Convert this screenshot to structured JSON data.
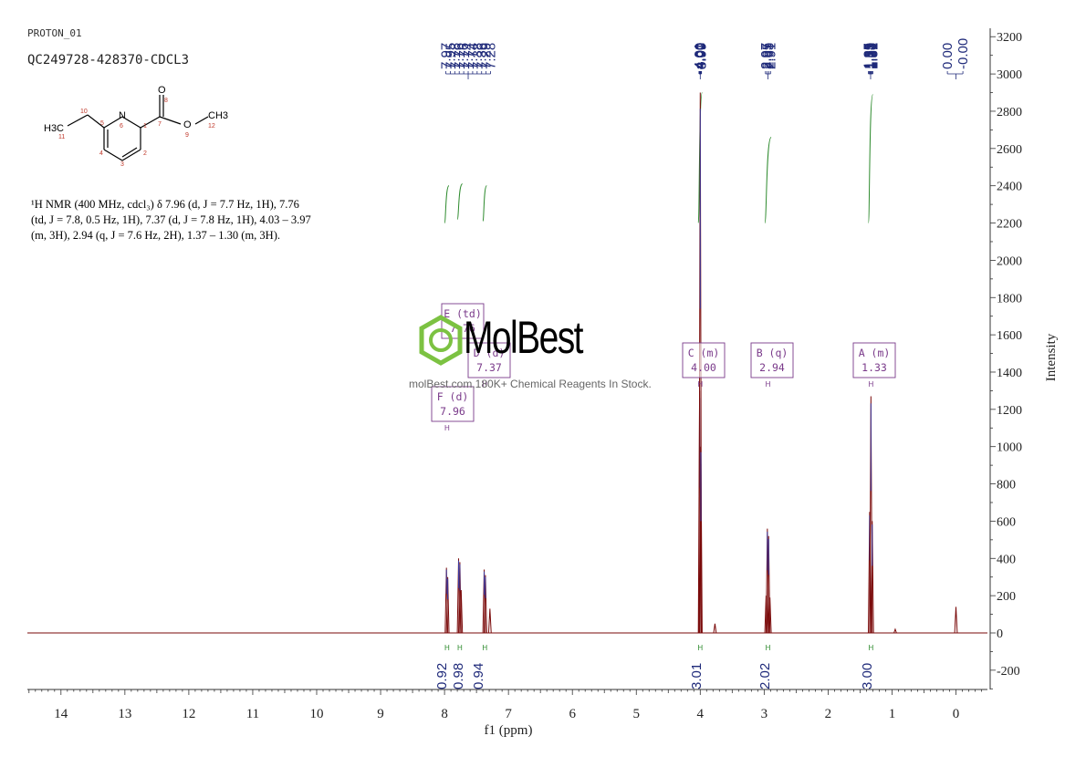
{
  "header": {
    "experiment": "PROTON_01",
    "sample": "QC249728-428370-CDCL3"
  },
  "nmr_description": {
    "line1": "¹H NMR (400 MHz, cdcl₃) δ 7.96 (d, J = 7.7 Hz, 1H), 7.76",
    "line2": "(td, J = 7.8, 0.5 Hz, 1H), 7.37 (d, J = 7.8 Hz, 1H), 4.03 – 3.97",
    "line3": "(m, 3H), 2.94 (q, J = 7.6 Hz, 2H), 1.37 – 1.30 (m, 3H)."
  },
  "structure": {
    "labels": [
      "H3C",
      "N",
      "O",
      "O",
      "CH3"
    ],
    "atom_numbers": [
      "10",
      "11",
      "5",
      "6",
      "1",
      "7",
      "8",
      "9",
      "12",
      "4",
      "3",
      "2"
    ]
  },
  "watermark": {
    "brand": "MolBest",
    "tagline": "molBest.com,180K+ Chemical Reagents In Stock."
  },
  "chart_data": {
    "type": "line",
    "xlabel": "f1 (ppm)",
    "ylabel": "Intensity",
    "xlim": [
      14.6,
      -0.5
    ],
    "ylim": [
      -300,
      3250
    ],
    "x_ticks": [
      14,
      13,
      12,
      11,
      10,
      9,
      8,
      7,
      6,
      5,
      4,
      3,
      2,
      1,
      0
    ],
    "y_ticks": [
      -200,
      0,
      200,
      400,
      600,
      800,
      1000,
      1200,
      1400,
      1600,
      1800,
      2000,
      2200,
      2400,
      2600,
      2800,
      3000,
      3200
    ],
    "peaks": [
      {
        "ppm": 7.97,
        "h": 350
      },
      {
        "ppm": 7.95,
        "h": 300
      },
      {
        "ppm": 7.78,
        "h": 400
      },
      {
        "ppm": 7.76,
        "h": 380
      },
      {
        "ppm": 7.74,
        "h": 230
      },
      {
        "ppm": 7.38,
        "h": 340
      },
      {
        "ppm": 7.36,
        "h": 310
      },
      {
        "ppm": 7.29,
        "h": 130
      },
      {
        "ppm": 4.01,
        "h": 1300
      },
      {
        "ppm": 4.0,
        "h": 2900
      },
      {
        "ppm": 3.99,
        "h": 1000
      },
      {
        "ppm": 3.77,
        "h": 50
      },
      {
        "ppm": 2.97,
        "h": 200
      },
      {
        "ppm": 2.95,
        "h": 560
      },
      {
        "ppm": 2.93,
        "h": 520
      },
      {
        "ppm": 2.91,
        "h": 190
      },
      {
        "ppm": 1.35,
        "h": 650
      },
      {
        "ppm": 1.33,
        "h": 1270
      },
      {
        "ppm": 1.31,
        "h": 600
      },
      {
        "ppm": 0.95,
        "h": 20
      },
      {
        "ppm": 0.0,
        "h": 140
      }
    ],
    "peak_labels": [
      "7.97",
      "7.95",
      "7.78",
      "7.76",
      "7.76",
      "7.74",
      "7.74",
      "7.38",
      "7.36",
      "7.29",
      "7.28",
      "4.01",
      "4.01",
      "4.00",
      "4.00",
      "4.00",
      "4.00",
      "3.99",
      "3.99",
      "2.97",
      "2.95",
      "2.93",
      "2.91",
      "1.35",
      "1.35",
      "1.33",
      "1.33",
      "1.33",
      "1.31",
      "1.31",
      "0.00",
      "-0.00"
    ],
    "label_groups": [
      [
        0,
        10,
        7.98,
        7.28
      ],
      [
        11,
        18,
        4.02,
        3.98
      ],
      [
        19,
        22,
        2.98,
        2.9
      ],
      [
        23,
        29,
        1.37,
        1.3
      ],
      [
        30,
        31,
        0.02,
        -0.02
      ]
    ],
    "multiplets": [
      {
        "name": "F (d)",
        "shift": "7.96",
        "ppm": 7.96
      },
      {
        "name": "E (td)",
        "shift": "7.76",
        "ppm": 7.76
      },
      {
        "name": "D (d)",
        "shift": "7.37",
        "ppm": 7.37
      },
      {
        "name": "C (m)",
        "shift": "4.00",
        "ppm": 4.0
      },
      {
        "name": "B (q)",
        "shift": "2.94",
        "ppm": 2.94
      },
      {
        "name": "A (m)",
        "shift": "1.33",
        "ppm": 1.33
      }
    ],
    "integrals": [
      {
        "value": "0.92",
        "ppm": 7.96
      },
      {
        "value": "0.98",
        "ppm": 7.76
      },
      {
        "value": "0.94",
        "ppm": 7.37
      },
      {
        "value": "3.01",
        "ppm": 4.0
      },
      {
        "value": "2.02",
        "ppm": 2.94
      },
      {
        "value": "3.00",
        "ppm": 1.33
      }
    ],
    "integral_curves": [
      {
        "ppm_start": 8.0,
        "ppm_end": 7.93,
        "y_start": 2200,
        "y_end": 2400
      },
      {
        "ppm_start": 7.8,
        "ppm_end": 7.72,
        "y_start": 2220,
        "y_end": 2410
      },
      {
        "ppm_start": 7.4,
        "ppm_end": 7.34,
        "y_start": 2210,
        "y_end": 2400
      },
      {
        "ppm_start": 4.03,
        "ppm_end": 3.97,
        "y_start": 2200,
        "y_end": 2900
      },
      {
        "ppm_start": 2.99,
        "ppm_end": 2.89,
        "y_start": 2200,
        "y_end": 2660
      },
      {
        "ppm_start": 1.37,
        "ppm_end": 1.3,
        "y_start": 2200,
        "y_end": 2890
      }
    ],
    "colors": {
      "spectrum": "#7a0a0a",
      "integral": "#2e8b2e",
      "labels": "#1f2a7a",
      "multiplet": "#7a3a8a",
      "axis": "#333333"
    }
  }
}
